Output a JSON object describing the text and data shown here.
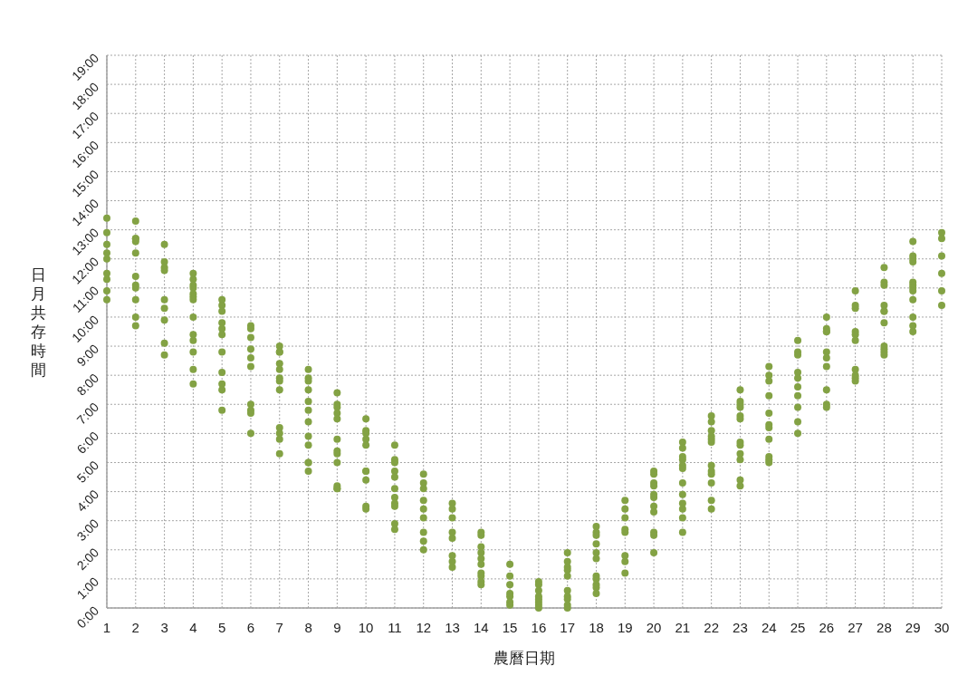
{
  "chart_data": {
    "type": "scatter",
    "xlabel": "農曆日期",
    "ylabel": "日月共存時間",
    "xlim": [
      1,
      30
    ],
    "xticks": [
      1,
      2,
      3,
      4,
      5,
      6,
      7,
      8,
      9,
      10,
      11,
      12,
      13,
      14,
      15,
      16,
      17,
      18,
      19,
      20,
      21,
      22,
      23,
      24,
      25,
      26,
      27,
      28,
      29,
      30
    ],
    "ylim": [
      0,
      19
    ],
    "yticks": [
      {
        "value": 0,
        "label": "0:00"
      },
      {
        "value": 1,
        "label": "1:00"
      },
      {
        "value": 2,
        "label": "2:00"
      },
      {
        "value": 3,
        "label": "3:00"
      },
      {
        "value": 4,
        "label": "4:00"
      },
      {
        "value": 5,
        "label": "5:00"
      },
      {
        "value": 6,
        "label": "6:00"
      },
      {
        "value": 7,
        "label": "7:00"
      },
      {
        "value": 8,
        "label": "8:00"
      },
      {
        "value": 9,
        "label": "9:00"
      },
      {
        "value": 10,
        "label": "10:00"
      },
      {
        "value": 11,
        "label": "11:00"
      },
      {
        "value": 12,
        "label": "12:00"
      },
      {
        "value": 13,
        "label": "13:00"
      },
      {
        "value": 14,
        "label": "14:00"
      },
      {
        "value": 15,
        "label": "15:00"
      },
      {
        "value": 16,
        "label": "16:00"
      },
      {
        "value": 17,
        "label": "17:00"
      },
      {
        "value": 18,
        "label": "18:00"
      },
      {
        "value": 19,
        "label": "19:00"
      }
    ],
    "grid": true,
    "marker": "circle",
    "series": [
      {
        "color": "#83a244",
        "x": [
          1,
          1,
          1,
          1,
          1,
          1,
          1,
          1,
          1,
          2,
          2,
          2,
          2,
          2,
          2,
          2,
          2,
          2,
          2,
          2,
          3,
          3,
          3,
          3,
          3,
          3,
          3,
          3,
          3,
          4,
          4,
          4,
          4,
          4,
          4,
          4,
          4,
          4,
          4,
          4,
          4,
          4,
          5,
          5,
          5,
          5,
          5,
          5,
          5,
          5,
          5,
          5,
          5,
          6,
          6,
          6,
          6,
          6,
          6,
          6,
          6,
          6,
          6,
          7,
          7,
          7,
          7,
          7,
          7,
          7,
          7,
          7,
          7,
          7,
          7,
          8,
          8,
          8,
          8,
          8,
          8,
          8,
          8,
          8,
          8,
          8,
          8,
          9,
          9,
          9,
          9,
          9,
          9,
          9,
          9,
          9,
          9,
          9,
          9,
          10,
          10,
          10,
          10,
          10,
          10,
          10,
          10,
          10,
          10,
          11,
          11,
          11,
          11,
          11,
          11,
          11,
          11,
          11,
          11,
          11,
          12,
          12,
          12,
          12,
          12,
          12,
          12,
          12,
          12,
          13,
          13,
          13,
          13,
          13,
          13,
          13,
          13,
          14,
          14,
          14,
          14,
          14,
          14,
          14,
          14,
          14,
          14,
          15,
          15,
          15,
          15,
          15,
          15,
          15,
          16,
          16,
          16,
          16,
          16,
          16,
          16,
          16,
          17,
          17,
          17,
          17,
          17,
          17,
          17,
          17,
          17,
          17,
          18,
          18,
          18,
          18,
          18,
          18,
          18,
          18,
          18,
          18,
          18,
          19,
          19,
          19,
          19,
          19,
          19,
          19,
          19,
          20,
          20,
          20,
          20,
          20,
          20,
          20,
          20,
          20,
          20,
          20,
          21,
          21,
          21,
          21,
          21,
          21,
          21,
          21,
          21,
          21,
          21,
          21,
          22,
          22,
          22,
          22,
          22,
          22,
          22,
          22,
          22,
          22,
          22,
          22,
          23,
          23,
          23,
          23,
          23,
          23,
          23,
          23,
          23,
          23,
          23,
          23,
          24,
          24,
          24,
          24,
          24,
          24,
          24,
          24,
          24,
          24,
          24,
          25,
          25,
          25,
          25,
          25,
          25,
          25,
          25,
          25,
          25,
          26,
          26,
          26,
          26,
          26,
          26,
          26,
          26,
          26,
          26,
          27,
          27,
          27,
          27,
          27,
          27,
          27,
          27,
          27,
          27,
          28,
          28,
          28,
          28,
          28,
          28,
          28,
          28,
          28,
          28,
          28,
          29,
          29,
          29,
          29,
          29,
          29,
          29,
          29,
          29,
          29,
          29,
          29,
          30,
          30,
          30,
          30,
          30,
          30
        ],
        "values": [
          13.4,
          12.9,
          12.5,
          12.2,
          12.0,
          11.5,
          11.3,
          10.9,
          10.6,
          13.3,
          12.7,
          12.7,
          12.6,
          12.2,
          11.4,
          11.1,
          11.0,
          10.6,
          10.0,
          9.7,
          12.5,
          11.9,
          11.7,
          11.6,
          10.6,
          10.3,
          9.9,
          9.1,
          8.7,
          11.5,
          11.3,
          11.1,
          11.0,
          10.8,
          10.7,
          10.6,
          10.0,
          9.4,
          9.2,
          8.8,
          8.2,
          7.7,
          10.6,
          10.4,
          10.2,
          9.8,
          9.6,
          9.4,
          8.8,
          8.1,
          7.7,
          7.5,
          6.8,
          9.7,
          9.6,
          9.3,
          8.9,
          8.6,
          8.3,
          7.0,
          6.8,
          6.7,
          6.0,
          9.0,
          8.8,
          8.8,
          8.4,
          8.2,
          7.9,
          7.8,
          7.5,
          6.2,
          6.0,
          5.8,
          5.3,
          8.2,
          7.9,
          7.8,
          7.5,
          7.1,
          6.8,
          6.4,
          5.9,
          5.6,
          5.0,
          5.0,
          4.7,
          7.4,
          7.0,
          6.9,
          6.7,
          6.5,
          5.8,
          5.4,
          5.3,
          5.0,
          4.2,
          4.1,
          4.1,
          6.5,
          6.1,
          6.0,
          5.8,
          5.6,
          4.7,
          4.7,
          4.4,
          3.5,
          3.4,
          5.6,
          5.1,
          5.0,
          4.7,
          4.5,
          4.1,
          3.8,
          3.6,
          3.5,
          2.9,
          2.7,
          4.6,
          4.3,
          4.1,
          3.7,
          3.4,
          3.1,
          2.6,
          2.3,
          2.0,
          3.6,
          3.4,
          3.1,
          2.6,
          2.4,
          1.8,
          1.6,
          1.4,
          2.6,
          2.5,
          2.1,
          1.9,
          1.7,
          1.5,
          1.2,
          1.1,
          0.9,
          0.8,
          1.5,
          1.1,
          0.8,
          0.5,
          0.4,
          0.2,
          0.1,
          0.9,
          0.8,
          0.6,
          0.4,
          0.3,
          0.2,
          0.1,
          0.0,
          1.9,
          1.6,
          1.4,
          1.3,
          1.1,
          0.6,
          0.4,
          0.3,
          0.1,
          0.0,
          2.8,
          2.6,
          2.5,
          2.2,
          1.9,
          1.7,
          1.1,
          1.0,
          0.8,
          0.7,
          0.5,
          3.7,
          3.4,
          3.1,
          2.7,
          2.6,
          1.8,
          1.6,
          1.2,
          4.7,
          4.6,
          4.3,
          4.2,
          3.9,
          3.8,
          3.5,
          3.3,
          2.6,
          2.5,
          1.9,
          5.7,
          5.5,
          5.2,
          5.1,
          4.9,
          4.8,
          4.3,
          3.9,
          3.6,
          3.4,
          3.1,
          2.6,
          6.6,
          6.4,
          6.1,
          5.9,
          5.8,
          5.7,
          4.9,
          4.7,
          4.6,
          4.3,
          3.7,
          3.4,
          7.5,
          7.1,
          7.0,
          6.9,
          6.6,
          6.5,
          5.7,
          5.6,
          5.3,
          5.1,
          4.4,
          4.2,
          8.3,
          8.0,
          7.8,
          7.3,
          6.7,
          6.3,
          6.2,
          5.8,
          5.2,
          5.1,
          5.0,
          9.2,
          8.8,
          8.7,
          8.1,
          7.9,
          7.6,
          7.3,
          6.9,
          6.4,
          6.0,
          10.0,
          9.6,
          9.5,
          9.5,
          8.8,
          8.6,
          8.3,
          7.5,
          7.0,
          6.9,
          10.9,
          10.4,
          10.3,
          9.5,
          9.4,
          9.2,
          8.2,
          8.0,
          7.9,
          7.8,
          11.7,
          11.2,
          11.1,
          10.4,
          10.2,
          10.2,
          9.8,
          9.0,
          8.9,
          8.8,
          8.7,
          12.6,
          12.1,
          12.0,
          11.9,
          11.2,
          11.1,
          11.0,
          10.9,
          10.6,
          10.0,
          9.7,
          9.5,
          12.9,
          12.7,
          12.1,
          11.5,
          10.9,
          10.4
        ]
      }
    ]
  }
}
